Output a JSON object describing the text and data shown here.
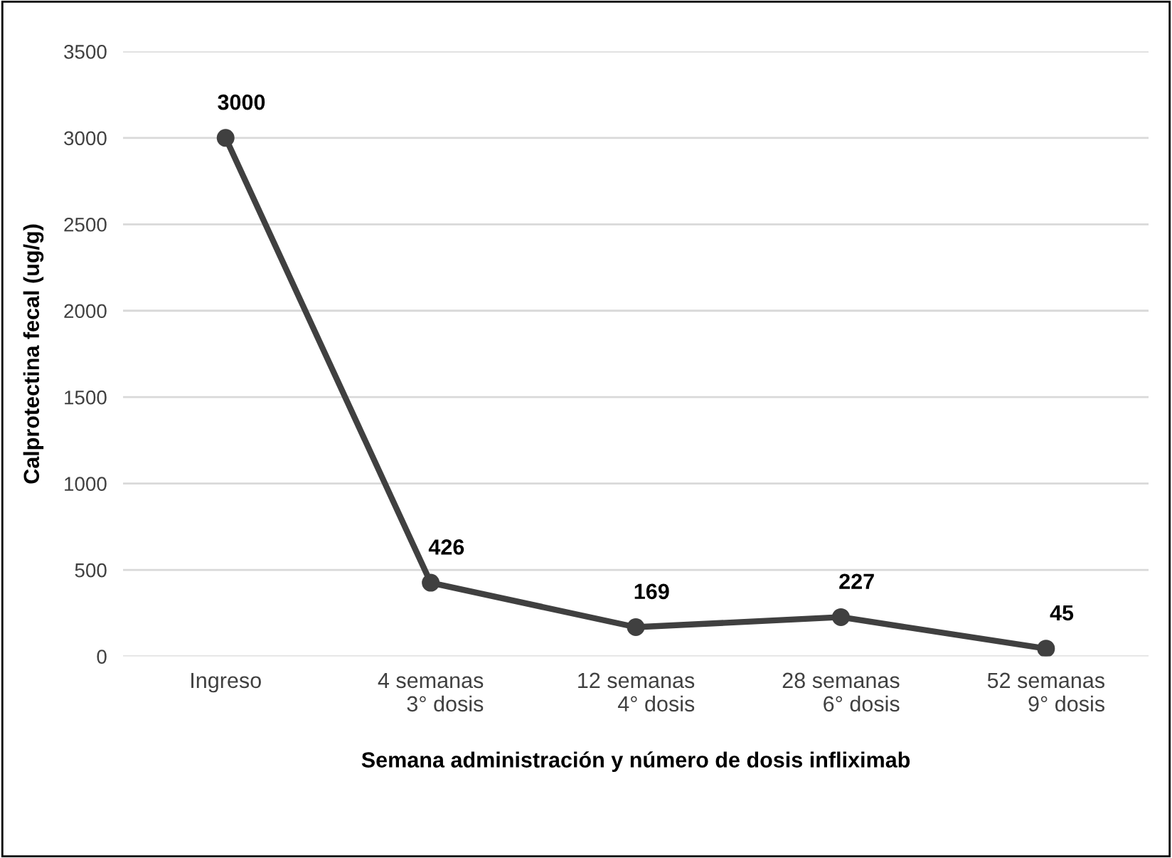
{
  "chart_data": {
    "type": "line",
    "xlabel": "Semana administración y número de dosis infliximab",
    "ylabel": "Calprotectina fecal (ug/g)",
    "categories": [
      "Ingreso",
      "4 semanas\n3° dosis",
      "12 semanas\n4° dosis",
      "28 semanas\n6° dosis",
      "52 semanas\n9° dosis"
    ],
    "series": [
      {
        "color": "#404040",
        "values": [
          3000,
          426,
          169,
          227,
          45
        ]
      }
    ],
    "ylim": [
      0,
      3500
    ],
    "yticks": [
      0,
      500,
      1000,
      1500,
      2000,
      2500,
      3000,
      3500
    ],
    "grid": "y",
    "marker": "circle",
    "line_style": "solid",
    "data_labels": true
  }
}
